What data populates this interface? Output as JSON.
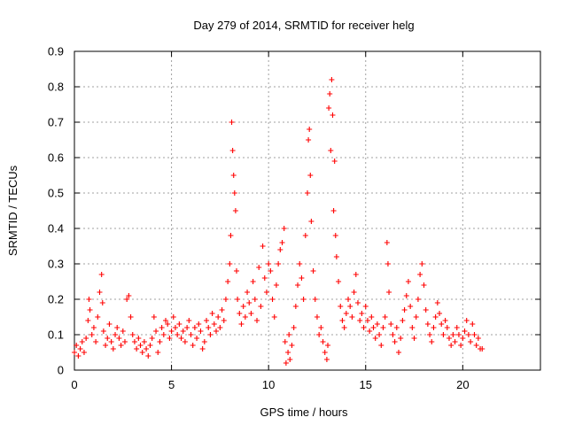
{
  "colors": {
    "series": "#ff0000",
    "frame": "#000000",
    "grid": "#a0a0a0"
  },
  "chart_data": {
    "type": "scatter",
    "title": "Day 279 of 2014, SRMTID for receiver helg",
    "xlabel": "GPS time / hours",
    "ylabel": "SRMTID / TECUs",
    "xlim": [
      0,
      24
    ],
    "ylim": [
      0,
      0.9
    ],
    "xticks": [
      0,
      5,
      10,
      15,
      20
    ],
    "xtick_labels": [
      "0",
      "5",
      "10",
      "15",
      "20"
    ],
    "yticks": [
      0,
      0.1,
      0.2,
      0.3,
      0.4,
      0.5,
      0.6,
      0.7,
      0.8,
      0.9
    ],
    "ytick_labels": [
      "0",
      "0.1",
      "0.2",
      "0.3",
      "0.4",
      "0.5",
      "0.6",
      "0.7",
      "0.8",
      "0.9"
    ],
    "grid": true,
    "marker": "plus",
    "series": [
      {
        "name": "SRMTID",
        "points": [
          [
            0.0,
            0.05
          ],
          [
            0.1,
            0.07
          ],
          [
            0.2,
            0.04
          ],
          [
            0.3,
            0.06
          ],
          [
            0.4,
            0.08
          ],
          [
            0.5,
            0.05
          ],
          [
            0.6,
            0.09
          ],
          [
            0.7,
            0.14
          ],
          [
            0.75,
            0.2
          ],
          [
            0.8,
            0.17
          ],
          [
            0.9,
            0.1
          ],
          [
            1.0,
            0.12
          ],
          [
            1.1,
            0.08
          ],
          [
            1.2,
            0.15
          ],
          [
            1.3,
            0.22
          ],
          [
            1.4,
            0.27
          ],
          [
            1.45,
            0.19
          ],
          [
            1.5,
            0.11
          ],
          [
            1.6,
            0.07
          ],
          [
            1.7,
            0.09
          ],
          [
            1.8,
            0.13
          ],
          [
            1.9,
            0.08
          ],
          [
            2.0,
            0.06
          ],
          [
            2.1,
            0.1
          ],
          [
            2.2,
            0.12
          ],
          [
            2.3,
            0.09
          ],
          [
            2.4,
            0.07
          ],
          [
            2.5,
            0.11
          ],
          [
            2.6,
            0.08
          ],
          [
            2.7,
            0.2
          ],
          [
            2.8,
            0.21
          ],
          [
            2.9,
            0.15
          ],
          [
            3.0,
            0.1
          ],
          [
            3.1,
            0.08
          ],
          [
            3.2,
            0.06
          ],
          [
            3.3,
            0.09
          ],
          [
            3.4,
            0.07
          ],
          [
            3.5,
            0.05
          ],
          [
            3.6,
            0.08
          ],
          [
            3.7,
            0.06
          ],
          [
            3.8,
            0.04
          ],
          [
            3.9,
            0.07
          ],
          [
            4.0,
            0.09
          ],
          [
            4.1,
            0.15
          ],
          [
            4.2,
            0.11
          ],
          [
            4.3,
            0.05
          ],
          [
            4.4,
            0.08
          ],
          [
            4.5,
            0.12
          ],
          [
            4.6,
            0.1
          ],
          [
            4.7,
            0.14
          ],
          [
            4.8,
            0.13
          ],
          [
            4.9,
            0.09
          ],
          [
            5.0,
            0.11
          ],
          [
            5.1,
            0.15
          ],
          [
            5.2,
            0.12
          ],
          [
            5.3,
            0.1
          ],
          [
            5.4,
            0.13
          ],
          [
            5.5,
            0.09
          ],
          [
            5.6,
            0.11
          ],
          [
            5.7,
            0.08
          ],
          [
            5.8,
            0.12
          ],
          [
            5.9,
            0.14
          ],
          [
            6.0,
            0.1
          ],
          [
            6.1,
            0.07
          ],
          [
            6.2,
            0.12
          ],
          [
            6.3,
            0.09
          ],
          [
            6.4,
            0.13
          ],
          [
            6.5,
            0.11
          ],
          [
            6.6,
            0.06
          ],
          [
            6.7,
            0.08
          ],
          [
            6.8,
            0.14
          ],
          [
            6.9,
            0.12
          ],
          [
            7.0,
            0.1
          ],
          [
            7.1,
            0.16
          ],
          [
            7.2,
            0.13
          ],
          [
            7.3,
            0.11
          ],
          [
            7.4,
            0.15
          ],
          [
            7.5,
            0.12
          ],
          [
            7.6,
            0.17
          ],
          [
            7.7,
            0.14
          ],
          [
            7.8,
            0.2
          ],
          [
            7.9,
            0.25
          ],
          [
            8.0,
            0.3
          ],
          [
            8.05,
            0.38
          ],
          [
            8.1,
            0.7
          ],
          [
            8.15,
            0.62
          ],
          [
            8.2,
            0.55
          ],
          [
            8.25,
            0.5
          ],
          [
            8.3,
            0.45
          ],
          [
            8.35,
            0.28
          ],
          [
            8.4,
            0.2
          ],
          [
            8.5,
            0.16
          ],
          [
            8.6,
            0.13
          ],
          [
            8.7,
            0.18
          ],
          [
            8.8,
            0.15
          ],
          [
            8.9,
            0.22
          ],
          [
            9.0,
            0.19
          ],
          [
            9.1,
            0.16
          ],
          [
            9.2,
            0.25
          ],
          [
            9.3,
            0.2
          ],
          [
            9.4,
            0.14
          ],
          [
            9.5,
            0.29
          ],
          [
            9.6,
            0.18
          ],
          [
            9.7,
            0.35
          ],
          [
            9.8,
            0.26
          ],
          [
            9.9,
            0.22
          ],
          [
            10.0,
            0.3
          ],
          [
            10.1,
            0.28
          ],
          [
            10.2,
            0.2
          ],
          [
            10.3,
            0.15
          ],
          [
            10.4,
            0.24
          ],
          [
            10.5,
            0.3
          ],
          [
            10.6,
            0.34
          ],
          [
            10.7,
            0.36
          ],
          [
            10.8,
            0.4
          ],
          [
            10.85,
            0.08
          ],
          [
            10.9,
            0.02
          ],
          [
            11.0,
            0.05
          ],
          [
            11.05,
            0.1
          ],
          [
            11.1,
            0.03
          ],
          [
            11.2,
            0.07
          ],
          [
            11.3,
            0.12
          ],
          [
            11.4,
            0.18
          ],
          [
            11.5,
            0.24
          ],
          [
            11.6,
            0.3
          ],
          [
            11.7,
            0.26
          ],
          [
            11.8,
            0.2
          ],
          [
            11.9,
            0.38
          ],
          [
            12.0,
            0.5
          ],
          [
            12.05,
            0.65
          ],
          [
            12.1,
            0.68
          ],
          [
            12.15,
            0.55
          ],
          [
            12.2,
            0.42
          ],
          [
            12.3,
            0.28
          ],
          [
            12.4,
            0.2
          ],
          [
            12.5,
            0.15
          ],
          [
            12.6,
            0.1
          ],
          [
            12.7,
            0.12
          ],
          [
            12.8,
            0.08
          ],
          [
            12.9,
            0.05
          ],
          [
            13.0,
            0.03
          ],
          [
            13.05,
            0.07
          ],
          [
            13.1,
            0.74
          ],
          [
            13.15,
            0.78
          ],
          [
            13.2,
            0.62
          ],
          [
            13.25,
            0.82
          ],
          [
            13.3,
            0.72
          ],
          [
            13.35,
            0.45
          ],
          [
            13.4,
            0.59
          ],
          [
            13.45,
            0.38
          ],
          [
            13.5,
            0.32
          ],
          [
            13.6,
            0.25
          ],
          [
            13.7,
            0.18
          ],
          [
            13.8,
            0.14
          ],
          [
            13.9,
            0.12
          ],
          [
            14.0,
            0.16
          ],
          [
            14.1,
            0.2
          ],
          [
            14.2,
            0.18
          ],
          [
            14.3,
            0.15
          ],
          [
            14.4,
            0.22
          ],
          [
            14.5,
            0.27
          ],
          [
            14.6,
            0.19
          ],
          [
            14.7,
            0.14
          ],
          [
            14.8,
            0.16
          ],
          [
            14.9,
            0.12
          ],
          [
            15.0,
            0.18
          ],
          [
            15.1,
            0.14
          ],
          [
            15.2,
            0.11
          ],
          [
            15.3,
            0.15
          ],
          [
            15.4,
            0.12
          ],
          [
            15.5,
            0.09
          ],
          [
            15.6,
            0.13
          ],
          [
            15.7,
            0.1
          ],
          [
            15.8,
            0.07
          ],
          [
            15.9,
            0.12
          ],
          [
            16.0,
            0.15
          ],
          [
            16.1,
            0.36
          ],
          [
            16.15,
            0.3
          ],
          [
            16.2,
            0.22
          ],
          [
            16.3,
            0.13
          ],
          [
            16.4,
            0.1
          ],
          [
            16.5,
            0.08
          ],
          [
            16.6,
            0.12
          ],
          [
            16.7,
            0.05
          ],
          [
            16.8,
            0.09
          ],
          [
            16.9,
            0.14
          ],
          [
            17.0,
            0.17
          ],
          [
            17.1,
            0.21
          ],
          [
            17.2,
            0.25
          ],
          [
            17.3,
            0.18
          ],
          [
            17.4,
            0.12
          ],
          [
            17.5,
            0.09
          ],
          [
            17.6,
            0.15
          ],
          [
            17.7,
            0.2
          ],
          [
            17.8,
            0.27
          ],
          [
            17.9,
            0.3
          ],
          [
            18.0,
            0.24
          ],
          [
            18.1,
            0.17
          ],
          [
            18.2,
            0.13
          ],
          [
            18.3,
            0.1
          ],
          [
            18.4,
            0.08
          ],
          [
            18.5,
            0.12
          ],
          [
            18.6,
            0.15
          ],
          [
            18.7,
            0.19
          ],
          [
            18.8,
            0.16
          ],
          [
            18.9,
            0.13
          ],
          [
            19.0,
            0.1
          ],
          [
            19.1,
            0.14
          ],
          [
            19.2,
            0.12
          ],
          [
            19.3,
            0.09
          ],
          [
            19.4,
            0.07
          ],
          [
            19.5,
            0.1
          ],
          [
            19.6,
            0.08
          ],
          [
            19.7,
            0.12
          ],
          [
            19.8,
            0.1
          ],
          [
            19.9,
            0.07
          ],
          [
            20.0,
            0.09
          ],
          [
            20.1,
            0.11
          ],
          [
            20.2,
            0.14
          ],
          [
            20.3,
            0.1
          ],
          [
            20.4,
            0.08
          ],
          [
            20.5,
            0.13
          ],
          [
            20.6,
            0.1
          ],
          [
            20.7,
            0.07
          ],
          [
            20.8,
            0.09
          ],
          [
            20.9,
            0.06
          ],
          [
            21.0,
            0.06
          ]
        ]
      }
    ]
  }
}
